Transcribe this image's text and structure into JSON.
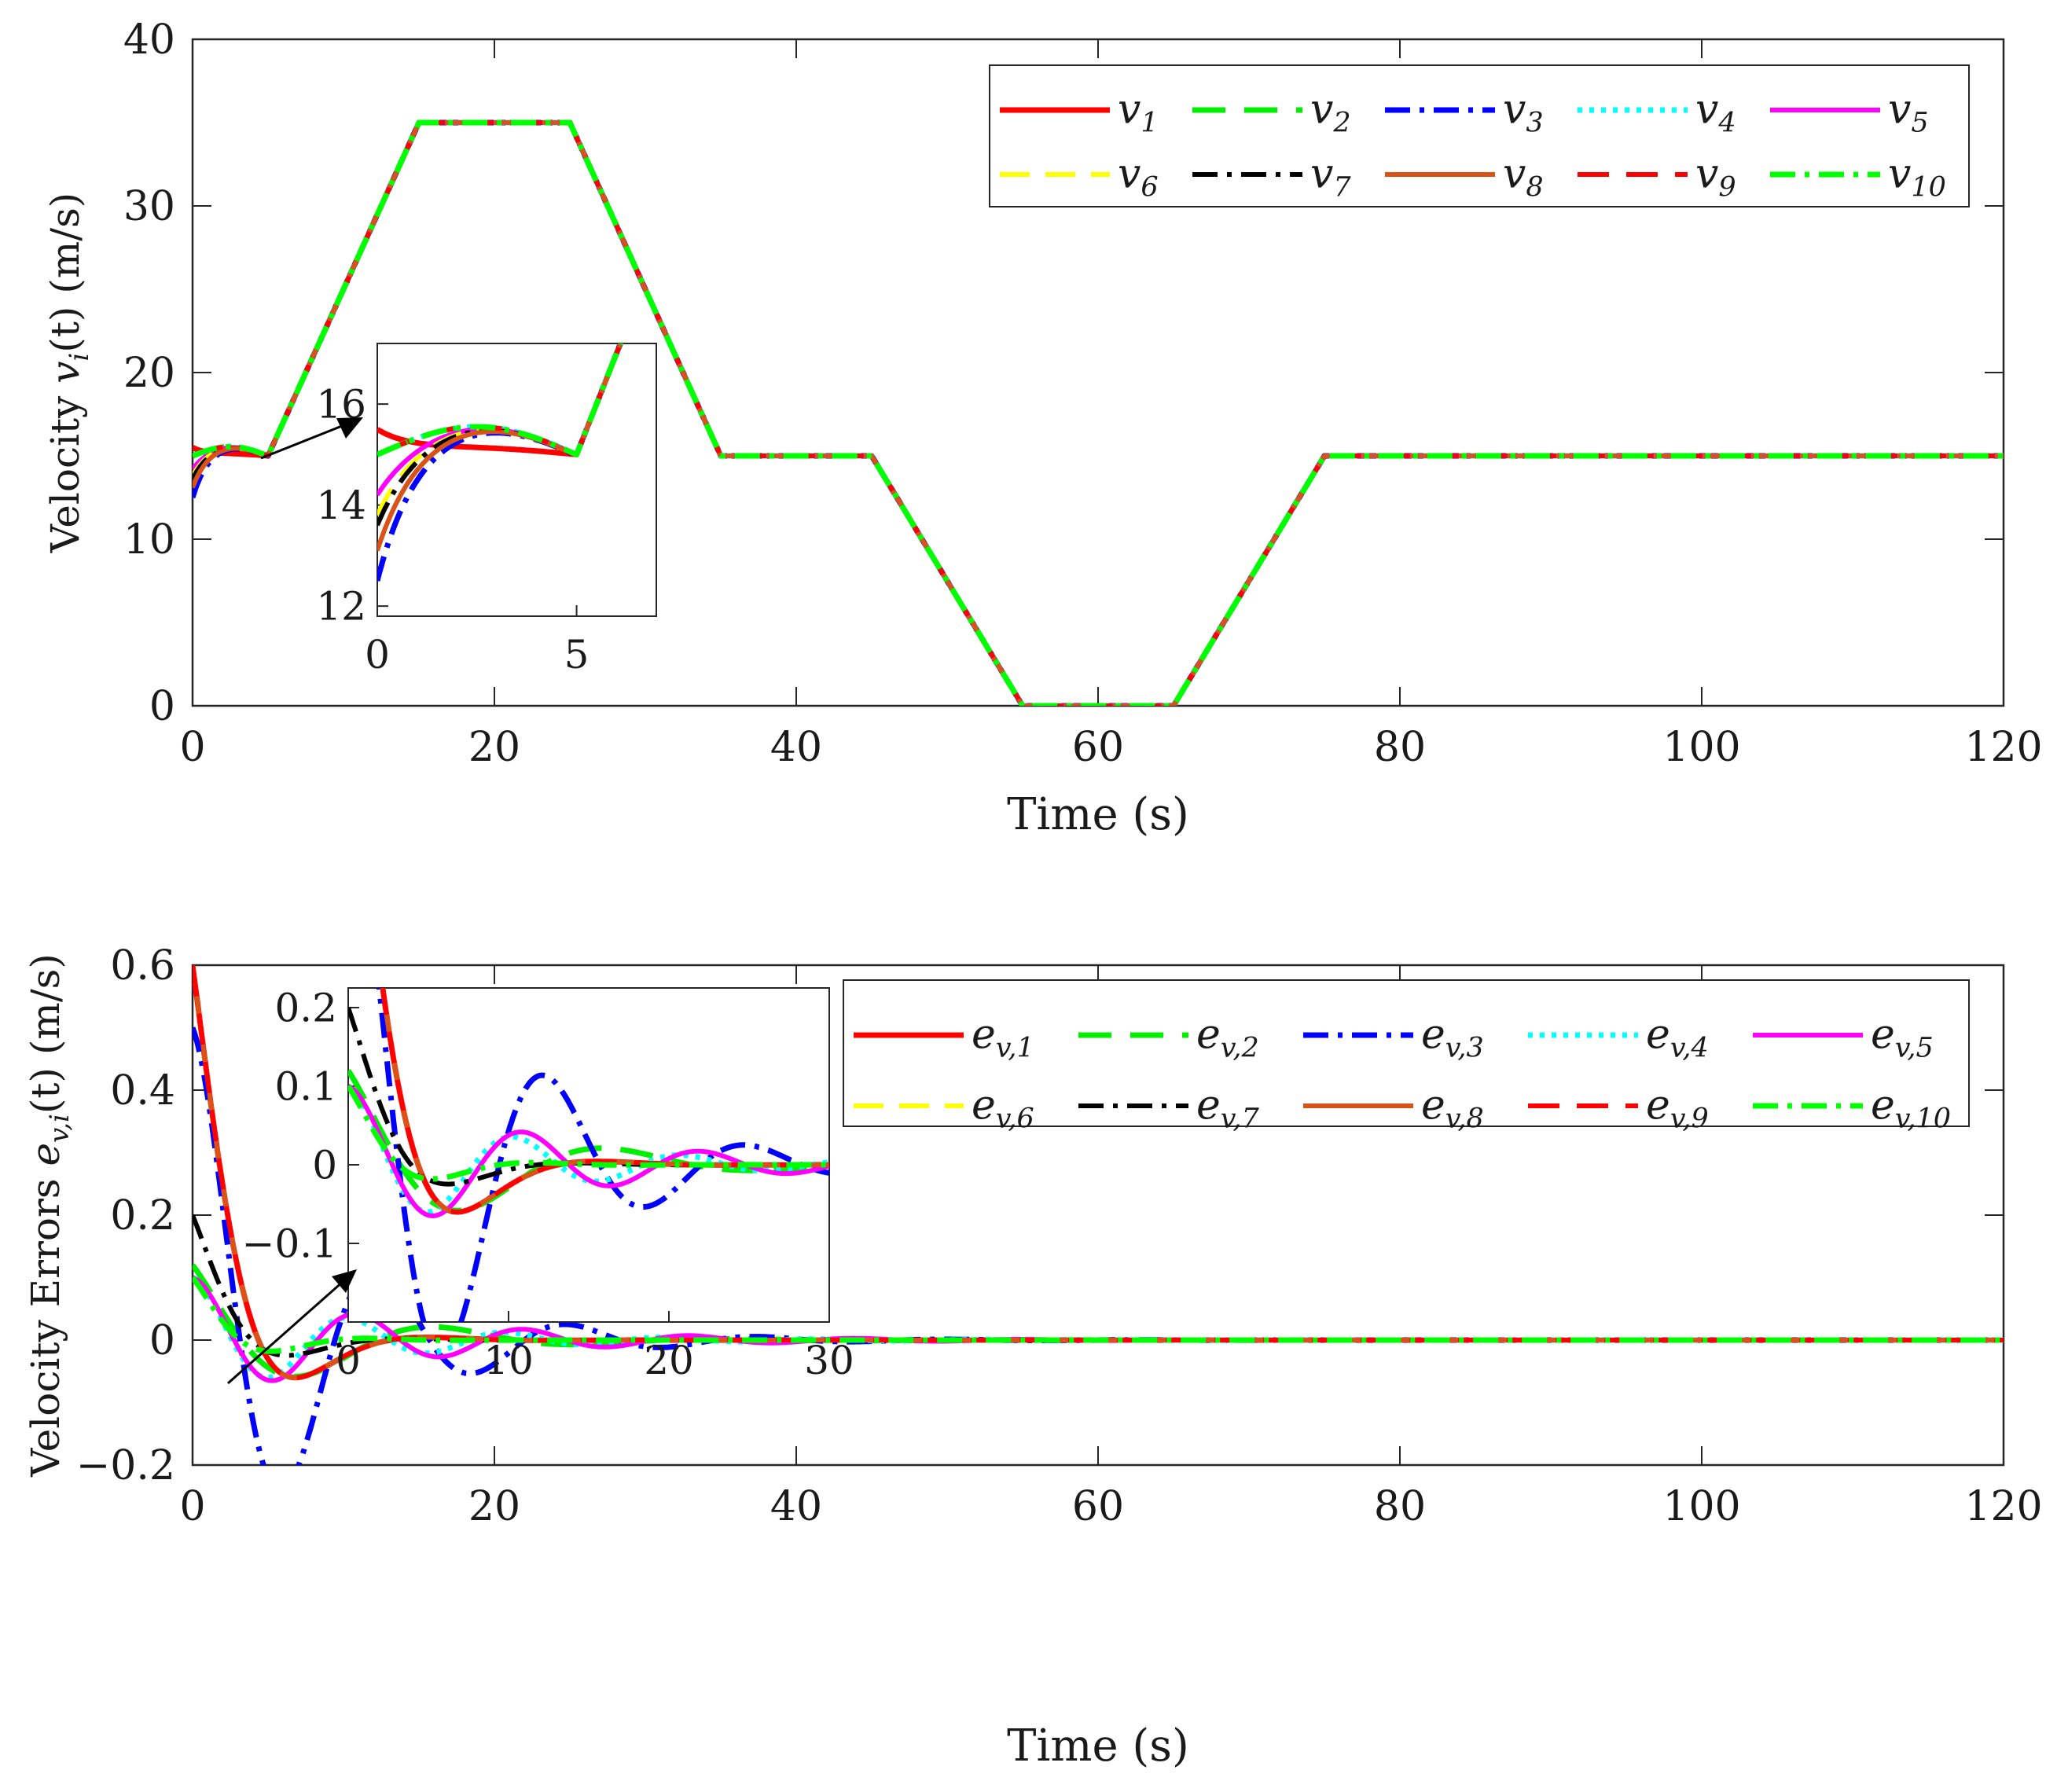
{
  "colors": {
    "v1": "#ff0000",
    "v2": "#00ee00",
    "v3": "#0000ff",
    "v4": "#00ffff",
    "v5": "#ff00ff",
    "v6": "#ffff00",
    "v7": "#000000",
    "v8": "#d95319",
    "v9": "#ff0000",
    "v10": "#00ff00"
  },
  "chart_data": [
    {
      "type": "line",
      "title": "",
      "xlabel": "Time (s)",
      "ylabel": "Velocity v_i(t) (m/s)",
      "ylabel_parts": {
        "before": "Velocity ",
        "sym": "v",
        "sub": "i",
        "after": "(t) (m/s)"
      },
      "xlim": [
        0,
        120
      ],
      "ylim": [
        0,
        40
      ],
      "xticks": [
        "0",
        "20",
        "40",
        "60",
        "80",
        "100",
        "120"
      ],
      "yticks": [
        "0",
        "10",
        "20",
        "30",
        "40"
      ],
      "legend_position": "top-right",
      "legend": [
        {
          "sym": "v",
          "sub": "1"
        },
        {
          "sym": "v",
          "sub": "2"
        },
        {
          "sym": "v",
          "sub": "3"
        },
        {
          "sym": "v",
          "sub": "4"
        },
        {
          "sym": "v",
          "sub": "5"
        },
        {
          "sym": "v",
          "sub": "6"
        },
        {
          "sym": "v",
          "sub": "7"
        },
        {
          "sym": "v",
          "sub": "8"
        },
        {
          "sym": "v",
          "sub": "9"
        },
        {
          "sym": "v",
          "sub": "10"
        }
      ],
      "reference_profile": {
        "x": [
          0,
          5,
          15,
          25,
          35,
          45,
          55,
          65,
          75,
          120
        ],
        "y": [
          15,
          15,
          35,
          35,
          15,
          15,
          0,
          0,
          15,
          15
        ]
      },
      "initial_values": [
        15.5,
        15,
        12.5,
        15,
        14.2,
        13.8,
        13.6,
        13.1,
        15,
        15
      ],
      "inset": {
        "xlim": [
          0,
          7
        ],
        "ylim": [
          11.8,
          17.2
        ],
        "xticks": [
          "0",
          "5"
        ],
        "yticks": [
          "12",
          "14",
          "16"
        ]
      }
    },
    {
      "type": "line",
      "title": "",
      "xlabel": "Time (s)",
      "ylabel": "Velocity Errors e_{v,i}(t) (m/s)",
      "ylabel_parts": {
        "before": "Velocity Errors ",
        "sym": "e",
        "sub": "v,i",
        "after": "(t) (m/s)"
      },
      "xlim": [
        0,
        120
      ],
      "ylim": [
        -0.2,
        0.6
      ],
      "xticks": [
        "0",
        "20",
        "40",
        "60",
        "80",
        "100",
        "120"
      ],
      "yticks": [
        "−0.2",
        "0",
        "0.2",
        "0.4",
        "0.6"
      ],
      "legend_position": "top-right",
      "legend": [
        {
          "sym": "e",
          "sub": "v,1"
        },
        {
          "sym": "e",
          "sub": "v,2"
        },
        {
          "sym": "e",
          "sub": "v,3"
        },
        {
          "sym": "e",
          "sub": "v,4"
        },
        {
          "sym": "e",
          "sub": "v,5"
        },
        {
          "sym": "e",
          "sub": "v,6"
        },
        {
          "sym": "e",
          "sub": "v,7"
        },
        {
          "sym": "e",
          "sub": "v,8"
        },
        {
          "sym": "e",
          "sub": "v,9"
        },
        {
          "sym": "e",
          "sub": "v,10"
        }
      ],
      "series_params": [
        {
          "name": "e_v,1",
          "A": 0.6,
          "omega": 0.36,
          "decay": 0.3
        },
        {
          "name": "e_v,2",
          "A": 0.12,
          "omega": 0.36,
          "decay": 0.14
        },
        {
          "name": "e_v,3",
          "A": 0.5,
          "omega": 0.5,
          "decay": 0.12
        },
        {
          "name": "e_v,4",
          "A": 0.1,
          "omega": 0.6,
          "decay": 0.1
        },
        {
          "name": "e_v,5",
          "A": 0.1,
          "omega": 0.57,
          "decay": 0.08
        },
        {
          "name": "e_v,6",
          "A": 0.6,
          "omega": 0.36,
          "decay": 0.3
        },
        {
          "name": "e_v,7",
          "A": 0.2,
          "omega": 0.4,
          "decay": 0.3
        },
        {
          "name": "e_v,8",
          "A": 0.6,
          "omega": 0.36,
          "decay": 0.3
        },
        {
          "name": "e_v,9",
          "A": 0.6,
          "omega": 0.36,
          "decay": 0.3
        },
        {
          "name": "e_v,10",
          "A": 0.1,
          "omega": 0.5,
          "decay": 0.3
        }
      ],
      "inset": {
        "xlim": [
          0,
          30
        ],
        "ylim": [
          -0.2,
          0.225
        ],
        "xticks": [
          "0",
          "10",
          "20",
          "30"
        ],
        "yticks": [
          "−0.1",
          "0",
          "0.1",
          "0.2"
        ]
      }
    }
  ]
}
